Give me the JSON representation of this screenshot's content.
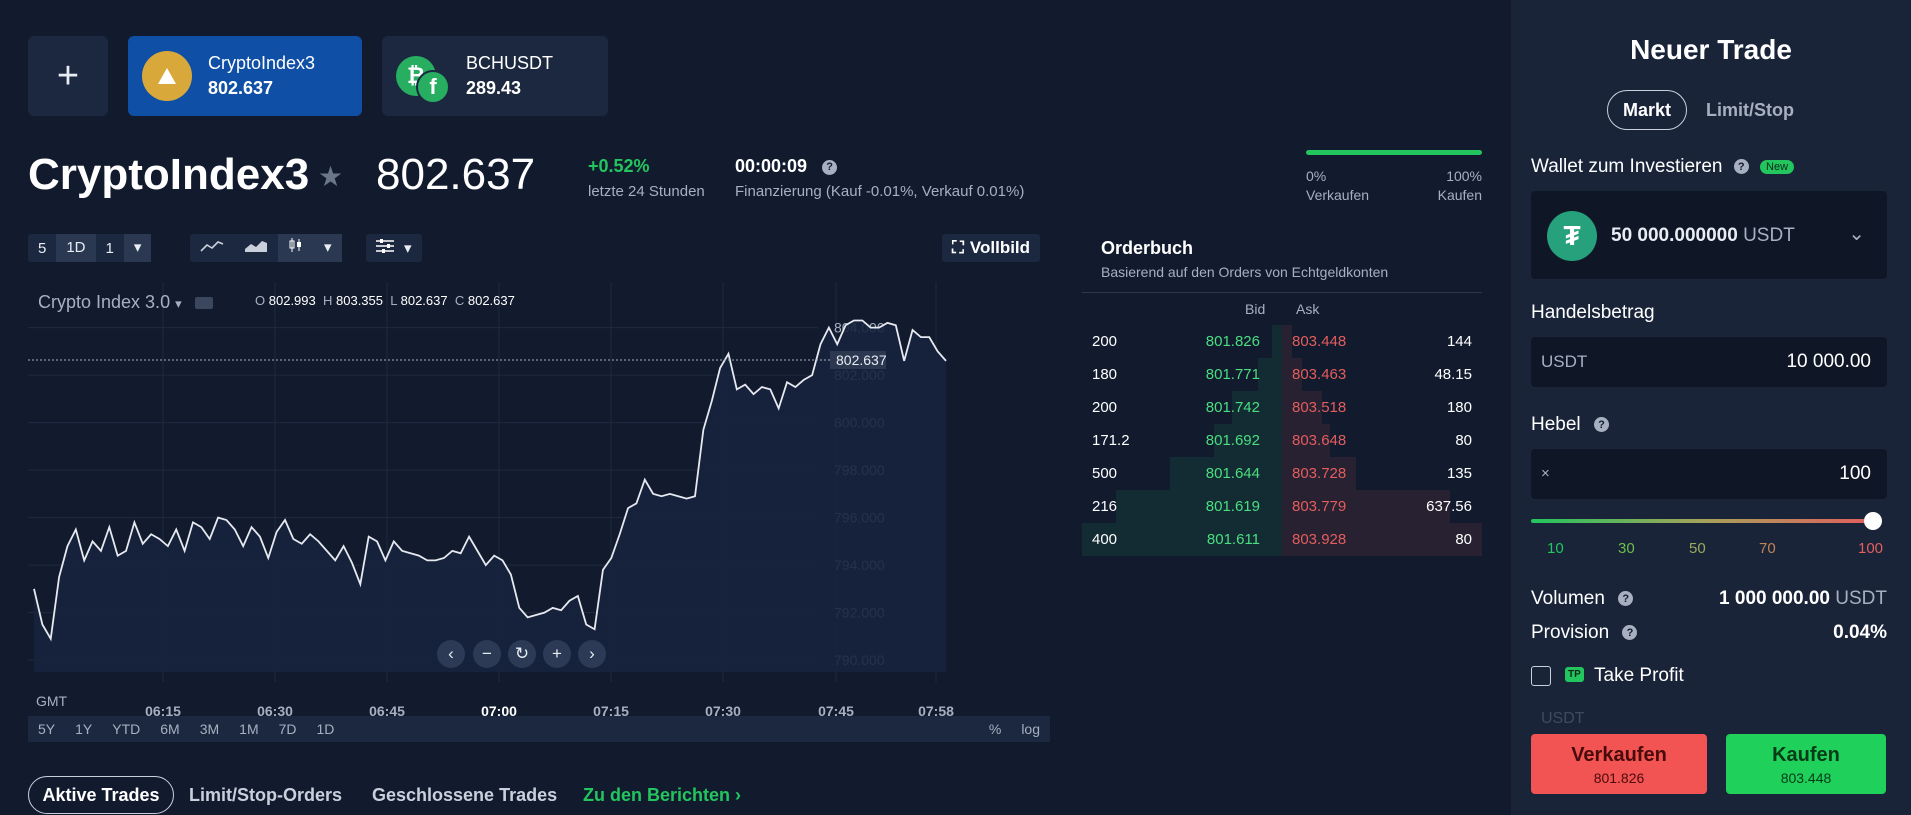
{
  "tabs": {
    "add_symbol": "+",
    "items": [
      {
        "name": "CryptoIndex3",
        "price": "802.637"
      },
      {
        "name": "BCHUSDT",
        "price": "289.43"
      }
    ]
  },
  "header": {
    "title": "CryptoIndex3",
    "price": "802.637",
    "change": "+0.52%",
    "change_label": "letzte 24 Stunden",
    "timer": "00:00:09",
    "financing": "Finanzierung (Kauf -0.01%, Verkauf 0.01%)",
    "sentiment": {
      "left_pct": "0%",
      "right_pct": "100%",
      "left_label": "Verkaufen",
      "right_label": "Kaufen",
      "buy_fraction": 1.0
    }
  },
  "toolbar": {
    "res_5": "5",
    "res_1d": "1D",
    "multiplier": "1",
    "fullscreen": "Vollbild"
  },
  "chart": {
    "label": "Crypto Index 3.0",
    "ohlc": {
      "o_label": "O",
      "o": "802.993",
      "h_label": "H",
      "h": "803.355",
      "l_label": "L",
      "l": "802.637",
      "c_label": "C",
      "c": "802.637"
    },
    "tz": "GMT",
    "ranges": [
      "5Y",
      "1Y",
      "YTD",
      "6M",
      "3M",
      "1M",
      "7D",
      "1D"
    ],
    "pct": "%",
    "log": "log"
  },
  "chart_data": {
    "type": "area",
    "x_ticks": [
      "06:15",
      "06:30",
      "06:45",
      "07:00",
      "07:15",
      "07:30",
      "07:45",
      "07:58"
    ],
    "y_ticks": [
      "804.000",
      "802.000",
      "800.000",
      "798.000",
      "796.000",
      "794.000",
      "792.000",
      "790.000"
    ],
    "ylim": [
      789.5,
      805.5
    ],
    "current_value": "802.637",
    "series": [
      {
        "values": [
          793.0,
          791.5,
          790.9,
          793.5,
          794.8,
          795.5,
          794.2,
          795.0,
          794.6,
          795.6,
          794.4,
          794.6,
          795.8,
          794.9,
          795.3,
          795.1,
          794.8,
          795.5,
          794.6,
          795.8,
          795.6,
          795.1,
          796.0,
          795.9,
          795.5,
          794.8,
          795.6,
          795.2,
          794.3,
          795.4,
          795.9,
          795.1,
          794.9,
          795.3,
          795.0,
          794.6,
          794.2,
          794.8,
          794.1,
          793.2,
          795.2,
          795.0,
          794.2,
          795.0,
          794.6,
          794.5,
          794.4,
          794.2,
          794.2,
          794.3,
          794.6,
          794.5,
          795.2,
          794.6,
          794.0,
          794.4,
          794.2,
          793.6,
          792.2,
          791.8,
          791.9,
          792.0,
          792.2,
          792.1,
          792.5,
          792.7,
          791.5,
          791.3,
          793.8,
          794.3,
          795.3,
          796.4,
          796.6,
          797.6,
          797.0,
          796.9,
          797.0,
          796.9,
          796.8,
          796.9,
          799.7,
          800.9,
          802.3,
          802.9,
          801.4,
          801.6,
          801.2,
          801.5,
          801.4,
          800.6,
          801.7,
          801.5,
          801.8,
          802.0,
          803.3,
          804.0,
          803.3,
          804.1,
          804.3,
          804.3,
          804.0,
          804.0,
          804.2,
          804.1,
          802.6,
          803.9,
          803.6,
          803.6,
          803.0,
          802.6
        ]
      }
    ]
  },
  "orderbook": {
    "title": "Orderbuch",
    "subtitle": "Basierend auf den Orders von Echtgeldkonten",
    "bid_header": "Bid",
    "ask_header": "Ask",
    "rows": [
      {
        "bid_vol": "200",
        "bid": "801.826",
        "ask": "803.448",
        "ask_vol": "144",
        "bid_depth": 0.05,
        "ask_depth": 0.05
      },
      {
        "bid_vol": "180",
        "bid": "801.771",
        "ask": "803.463",
        "ask_vol": "48.15",
        "bid_depth": 0.12,
        "ask_depth": 0.1
      },
      {
        "bid_vol": "200",
        "bid": "801.742",
        "ask": "803.518",
        "ask_vol": "180",
        "bid_depth": 0.25,
        "ask_depth": 0.2
      },
      {
        "bid_vol": "171.2",
        "bid": "801.692",
        "ask": "803.648",
        "ask_vol": "80",
        "bid_depth": 0.34,
        "ask_depth": 0.24
      },
      {
        "bid_vol": "500",
        "bid": "801.644",
        "ask": "803.728",
        "ask_vol": "135",
        "bid_depth": 0.56,
        "ask_depth": 0.37
      },
      {
        "bid_vol": "216",
        "bid": "801.619",
        "ask": "803.779",
        "ask_vol": "637.56",
        "bid_depth": 0.83,
        "ask_depth": 0.84
      },
      {
        "bid_vol": "400",
        "bid": "801.611",
        "ask": "803.928",
        "ask_vol": "80",
        "bid_depth": 1.0,
        "ask_depth": 1.0
      }
    ]
  },
  "bottom_tabs": {
    "active": "Aktive Trades",
    "limit": "Limit/Stop-Orders",
    "closed": "Geschlossene Trades",
    "reports": "Zu den Berichten ›"
  },
  "trade_panel": {
    "title": "Neuer Trade",
    "seg_market": "Markt",
    "seg_limit": "Limit/Stop",
    "wallet_label": "Wallet zum Investieren",
    "new_badge": "New",
    "wallet_amount": "50 000.000000",
    "wallet_currency": "USDT",
    "amount_label": "Handelsbetrag",
    "amount_currency": "USDT",
    "amount_value": "10 000.00",
    "leverage_label": "Hebel",
    "leverage_prefix": "×",
    "leverage_value": "100",
    "leverage_fraction": 1.0,
    "leverage_ticks": [
      "10",
      "30",
      "50",
      "70",
      "100"
    ],
    "volume_label": "Volumen",
    "volume_value": "1 000 000.00",
    "volume_currency": "USDT",
    "commission_label": "Provision",
    "commission_value": "0.04%",
    "tp_badge": "TP",
    "take_profit_label": "Take Profit",
    "tp_currency_hint": "USDT",
    "sell_label": "Verkaufen",
    "sell_price": "801.826",
    "buy_label": "Kaufen",
    "buy_price": "803.448",
    "colors": {
      "buy": "#1fd05a",
      "sell": "#f25353",
      "accent": "#0f4fa5"
    }
  }
}
